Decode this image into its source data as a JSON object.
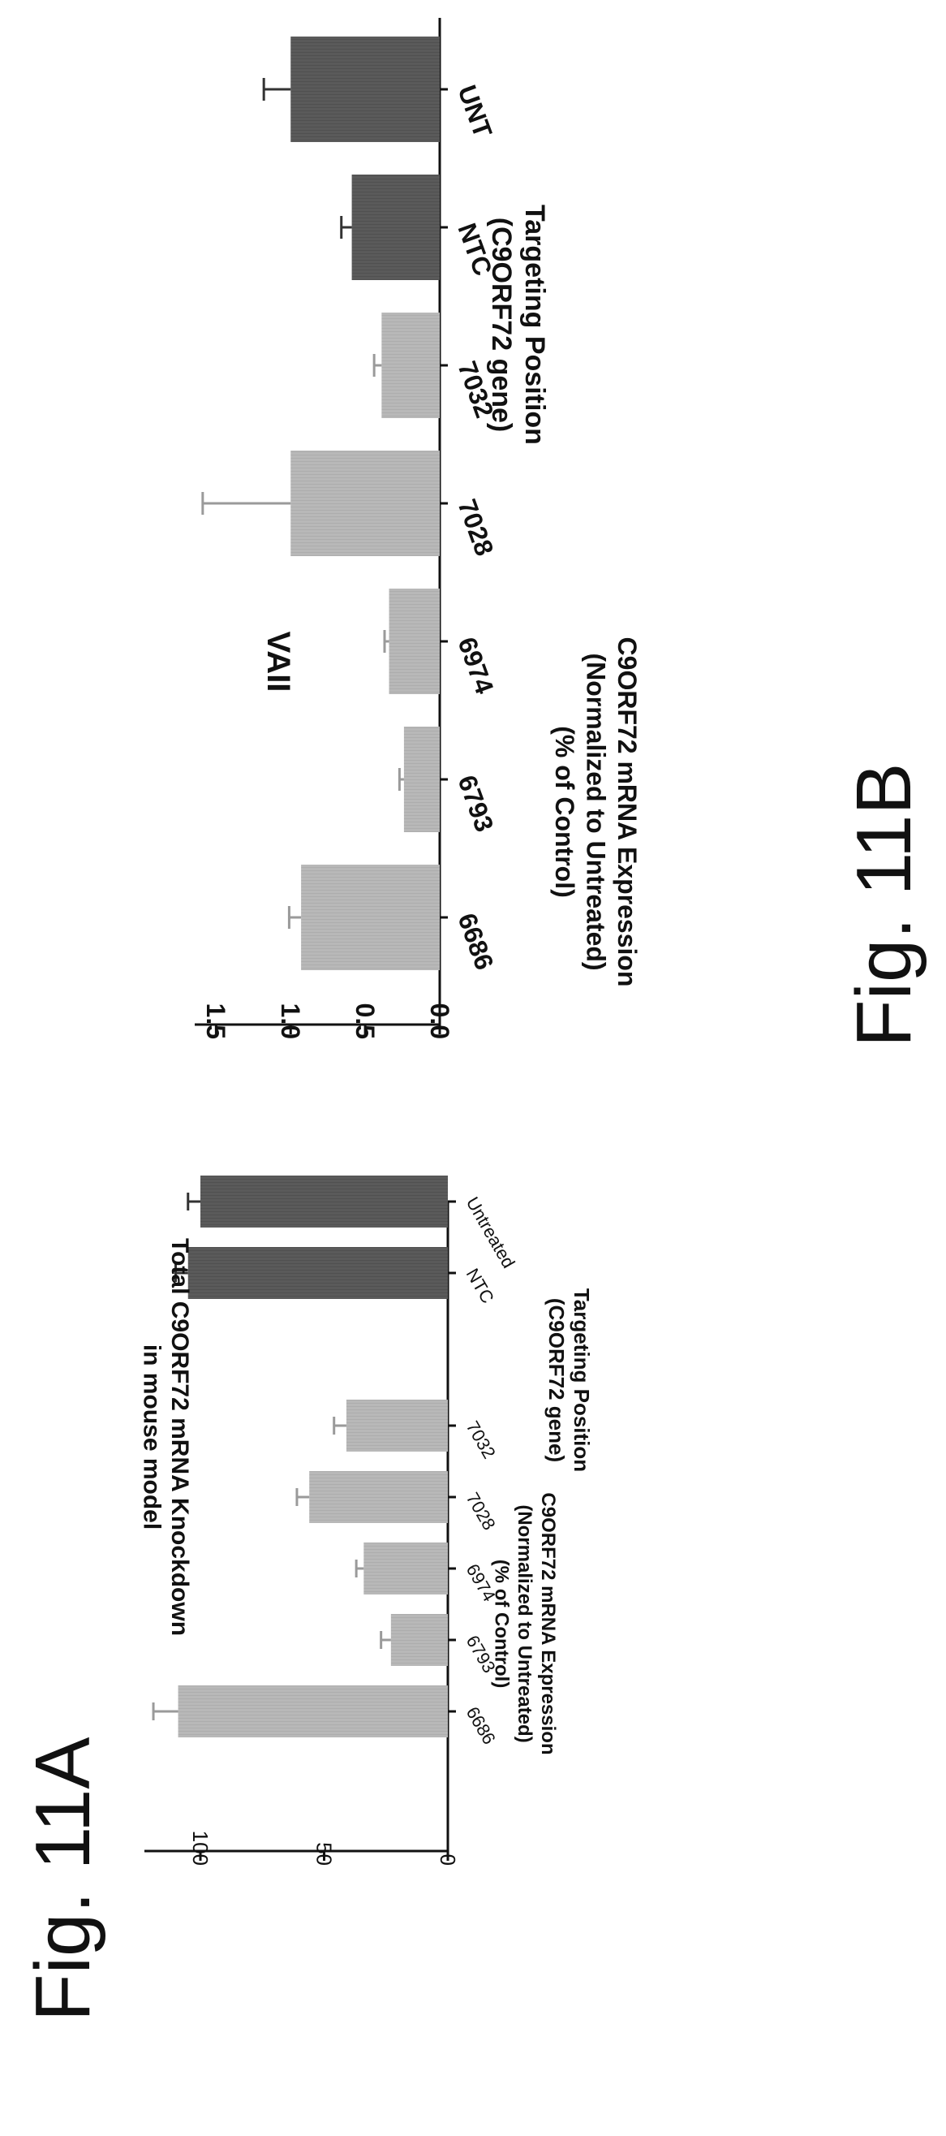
{
  "colors": {
    "light_bar": "#b8b8b8",
    "dark_bar": "#5a5a5a",
    "axis": "#111111",
    "light_err": "#9a9a9a",
    "dark_err": "#333333"
  },
  "fig_a_label": "Fig. 11A",
  "fig_b_label": "Fig. 11B",
  "chart_data": [
    {
      "type": "bar",
      "title": "Total C9ORF72 mRNA Knockdown\nin mouse model",
      "ylabel_lines": [
        "C9ORF72 mRNA Expression",
        "(Normalized to Untreated)",
        "(% of Control)"
      ],
      "xlabel_lines": [
        "Targeting Position",
        "(C9ORF72 gene)"
      ],
      "categories": [
        "6686",
        "6793",
        "6974",
        "7028",
        "7032",
        "NTC",
        "Untreated"
      ],
      "values": [
        109,
        23,
        34,
        56,
        41,
        105,
        100
      ],
      "errors": [
        10,
        4,
        3,
        5,
        5,
        5,
        5
      ],
      "bar_shade": [
        "light",
        "light",
        "light",
        "light",
        "light",
        "dark",
        "dark"
      ],
      "gap_before_index": 5,
      "yticks": [
        "0",
        "50",
        "100"
      ],
      "ytick_values": [
        0,
        50,
        100
      ],
      "ylim": [
        0,
        120
      ]
    },
    {
      "type": "bar",
      "title": "VAII",
      "ylabel_lines": [
        "C9ORF72 mRNA Expression",
        "(Normalized to Untreated)",
        "(% of Control)"
      ],
      "xlabel_lines": [
        "Targeting Position",
        "(C9ORF72 gene)"
      ],
      "categories": [
        "6686",
        "6793",
        "6974",
        "7028",
        "7032",
        "NTC",
        "UNT"
      ],
      "values": [
        0.93,
        0.24,
        0.34,
        1.0,
        0.39,
        0.59,
        1.0
      ],
      "errors": [
        0.08,
        0.03,
        0.03,
        0.59,
        0.05,
        0.07,
        0.18
      ],
      "bar_shade": [
        "light",
        "light",
        "light",
        "light",
        "light",
        "dark",
        "dark"
      ],
      "yticks": [
        "0.0",
        "0.5",
        "1.0",
        "1.5"
      ],
      "ytick_values": [
        0,
        0.5,
        1.0,
        1.5
      ],
      "ylim": [
        0,
        1.6
      ]
    }
  ]
}
